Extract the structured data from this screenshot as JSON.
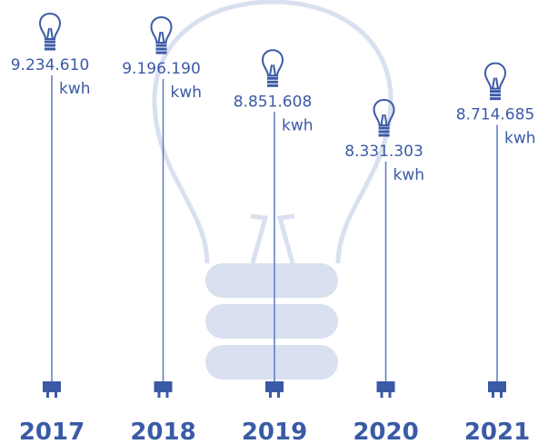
{
  "chart_data": {
    "type": "lollipop",
    "categories": [
      "2017",
      "2018",
      "2019",
      "2020",
      "2021"
    ],
    "values": [
      9234610,
      9196190,
      8851608,
      8331303,
      8714685
    ],
    "value_labels": [
      "9.234.610",
      "9.196.190",
      "8.851.608",
      "8.331.303",
      "8.714.685"
    ],
    "unit": "kwh",
    "color": "#5b79c2"
  }
}
